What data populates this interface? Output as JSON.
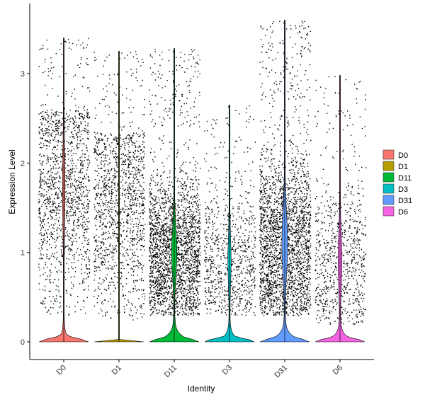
{
  "chart_data": {
    "type": "violin",
    "xlabel": "Identity",
    "ylabel": "Expression Level",
    "ylim": [
      -0.2,
      3.75
    ],
    "yticks": [
      0,
      1,
      2,
      3
    ],
    "grid": false,
    "legend_position": "right",
    "categories": [
      "D0",
      "D1",
      "D11",
      "D3",
      "D31",
      "D6"
    ],
    "series": [
      {
        "name": "D0",
        "color": "#F8766D",
        "max": 3.4,
        "jitter_points": 2600,
        "density_peak": 0.08
      },
      {
        "name": "D1",
        "color": "#B79F00",
        "max": 3.25,
        "jitter_points": 2500,
        "density_peak": 0.01
      },
      {
        "name": "D11",
        "color": "#00BA38",
        "max": 3.28,
        "jitter_points": 4500,
        "density_peak": 0.22
      },
      {
        "name": "D3",
        "color": "#00BFC4",
        "max": 2.65,
        "jitter_points": 1500,
        "density_peak": 0.12
      },
      {
        "name": "D31",
        "color": "#619CFF",
        "max": 3.6,
        "jitter_points": 6500,
        "density_peak": 0.25
      },
      {
        "name": "D6",
        "color": "#F564E3",
        "max": 2.98,
        "jitter_points": 1500,
        "density_peak": 0.15
      }
    ]
  }
}
